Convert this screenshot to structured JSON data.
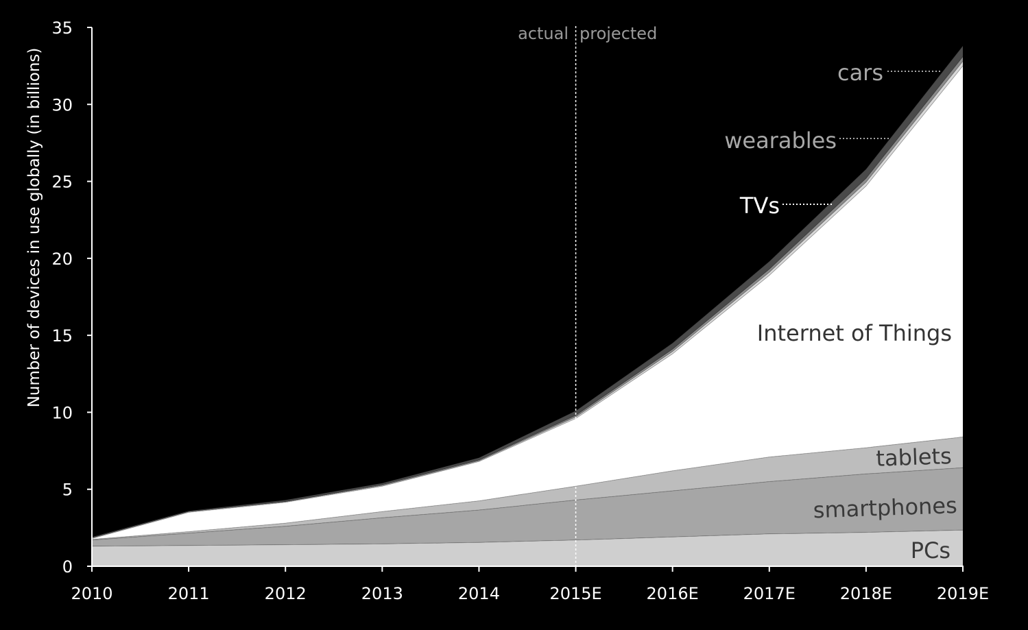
{
  "chart_data": {
    "type": "area",
    "stacked": true,
    "title": "",
    "xlabel": "",
    "ylabel": "Number of devices in use globally (in billions)",
    "categories": [
      "2010",
      "2011",
      "2012",
      "2013",
      "2014",
      "2015E",
      "2016E",
      "2017E",
      "2018E",
      "2019E"
    ],
    "ylim": [
      0,
      35
    ],
    "yticks": [
      0,
      5,
      10,
      15,
      20,
      25,
      30,
      35
    ],
    "grid": false,
    "annotations": {
      "divider_at": "2015E",
      "left_label": "actual",
      "right_label": "projected"
    },
    "series": [
      {
        "name": "PCs",
        "values": [
          1.3,
          1.35,
          1.4,
          1.45,
          1.55,
          1.7,
          1.9,
          2.1,
          2.2,
          2.35
        ]
      },
      {
        "name": "smartphones",
        "values": [
          0.4,
          0.8,
          1.2,
          1.7,
          2.1,
          2.6,
          3.0,
          3.4,
          3.8,
          4.05
        ]
      },
      {
        "name": "tablets",
        "values": [
          0.05,
          0.1,
          0.2,
          0.4,
          0.6,
          0.9,
          1.3,
          1.6,
          1.7,
          2.0
        ]
      },
      {
        "name": "Internet of Things",
        "values": [
          0.05,
          1.25,
          1.35,
          1.65,
          2.55,
          4.4,
          7.6,
          11.8,
          17.0,
          24.1
        ]
      },
      {
        "name": "TVs",
        "values": [
          0.05,
          0.05,
          0.05,
          0.05,
          0.05,
          0.1,
          0.15,
          0.2,
          0.25,
          0.3
        ]
      },
      {
        "name": "wearables",
        "values": [
          0.0,
          0.0,
          0.0,
          0.05,
          0.05,
          0.1,
          0.15,
          0.2,
          0.25,
          0.3
        ]
      },
      {
        "name": "cars",
        "values": [
          0.05,
          0.05,
          0.1,
          0.1,
          0.15,
          0.3,
          0.4,
          0.5,
          0.6,
          0.7
        ]
      }
    ],
    "colors": {
      "PCs": "#cfcfcf",
      "smartphones": "#a6a6a6",
      "tablets": "#bdbdbd",
      "Internet of Things": "#ffffff",
      "TVs": "#d9d9d9",
      "wearables": "#8c8c8c",
      "cars": "#4a4a4a"
    }
  }
}
